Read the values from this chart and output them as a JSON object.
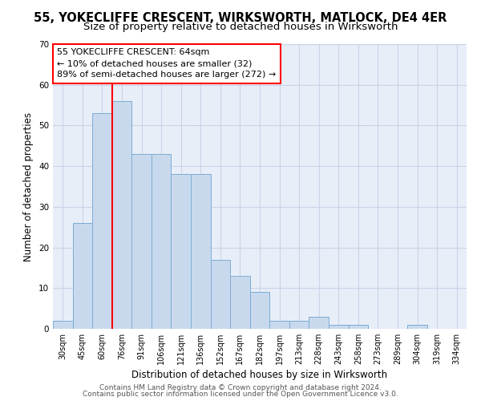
{
  "title": "55, YOKECLIFFE CRESCENT, WIRKSWORTH, MATLOCK, DE4 4ER",
  "subtitle": "Size of property relative to detached houses in Wirksworth",
  "xlabel": "Distribution of detached houses by size in Wirksworth",
  "ylabel": "Number of detached properties",
  "categories": [
    "30sqm",
    "45sqm",
    "60sqm",
    "76sqm",
    "91sqm",
    "106sqm",
    "121sqm",
    "136sqm",
    "152sqm",
    "167sqm",
    "182sqm",
    "197sqm",
    "213sqm",
    "228sqm",
    "243sqm",
    "258sqm",
    "273sqm",
    "289sqm",
    "304sqm",
    "319sqm",
    "334sqm"
  ],
  "bar_values": [
    2,
    26,
    53,
    56,
    43,
    43,
    38,
    38,
    17,
    13,
    9,
    2,
    2,
    3,
    1,
    1,
    0,
    0,
    1,
    0,
    0
  ],
  "bar_color": "#c9d9ed",
  "bar_edge_color": "#7aadd4",
  "grid_color": "#c8d4e8",
  "bg_color": "#e8eef8",
  "ylim": [
    0,
    70
  ],
  "yticks": [
    0,
    10,
    20,
    30,
    40,
    50,
    60,
    70
  ],
  "annotation_title": "55 YOKECLIFFE CRESCENT: 64sqm",
  "annotation_line1": "← 10% of detached houses are smaller (32)",
  "annotation_line2": "89% of semi-detached houses are larger (272) →",
  "footnote1": "Contains HM Land Registry data © Crown copyright and database right 2024.",
  "footnote2": "Contains public sector information licensed under the Open Government Licence v3.0.",
  "title_fontsize": 10.5,
  "subtitle_fontsize": 9.5,
  "axis_label_fontsize": 8.5,
  "tick_fontsize": 7,
  "annotation_fontsize": 8,
  "footnote_fontsize": 6.5,
  "red_line_x": 2.5
}
